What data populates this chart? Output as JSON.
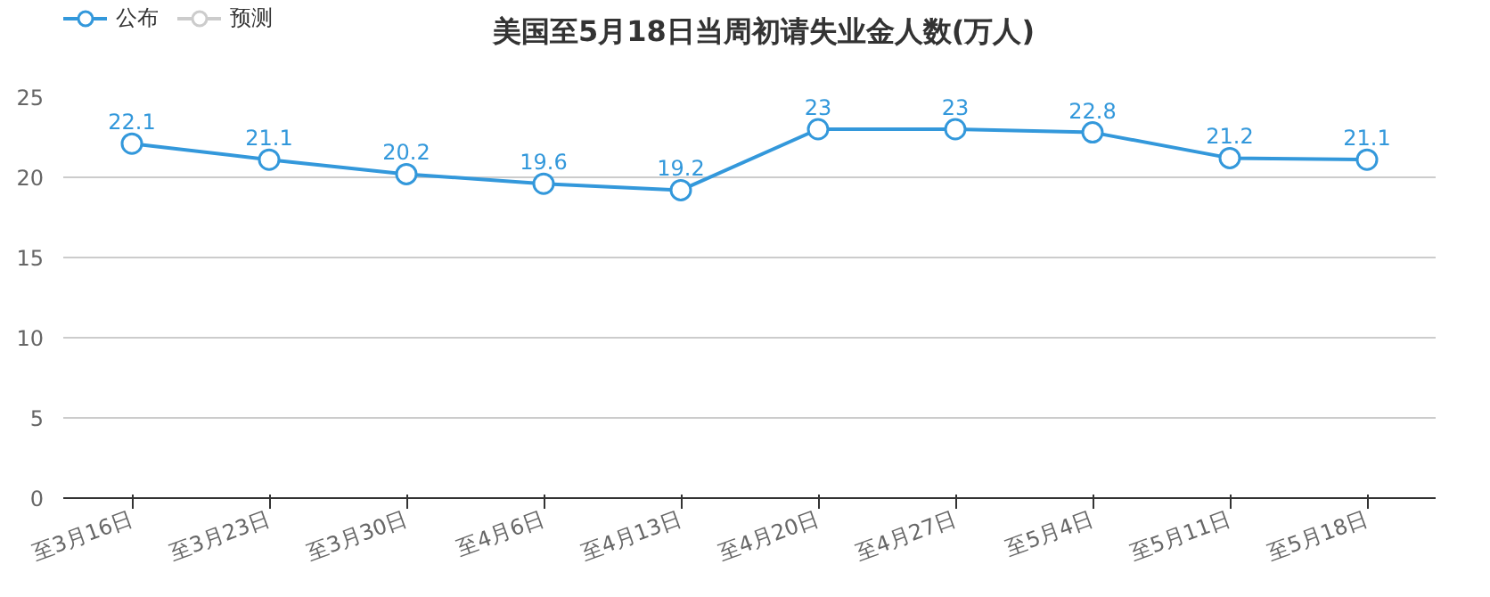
{
  "chart_data": {
    "type": "line",
    "title": "美国至5月18日当周初请失业金人数(万人)",
    "categories": [
      "至3月16日",
      "至3月23日",
      "至3月30日",
      "至4月6日",
      "至4月13日",
      "至4月20日",
      "至4月27日",
      "至5月4日",
      "至5月11日",
      "至5月18日"
    ],
    "series": [
      {
        "name": "公布",
        "color": "#3398db",
        "values": [
          22.1,
          21.1,
          20.2,
          19.6,
          19.2,
          23,
          23,
          22.8,
          21.2,
          21.1
        ]
      },
      {
        "name": "预测",
        "color": "#cccccc",
        "values": [
          null,
          null,
          null,
          null,
          null,
          null,
          null,
          null,
          null,
          null
        ]
      }
    ],
    "ylim": [
      0,
      25
    ],
    "yticks": [
      0,
      5,
      10,
      15,
      20,
      25
    ],
    "grid": "y",
    "legend": "top left",
    "marker": "circle",
    "line_style": "solid",
    "data_labels": true
  }
}
